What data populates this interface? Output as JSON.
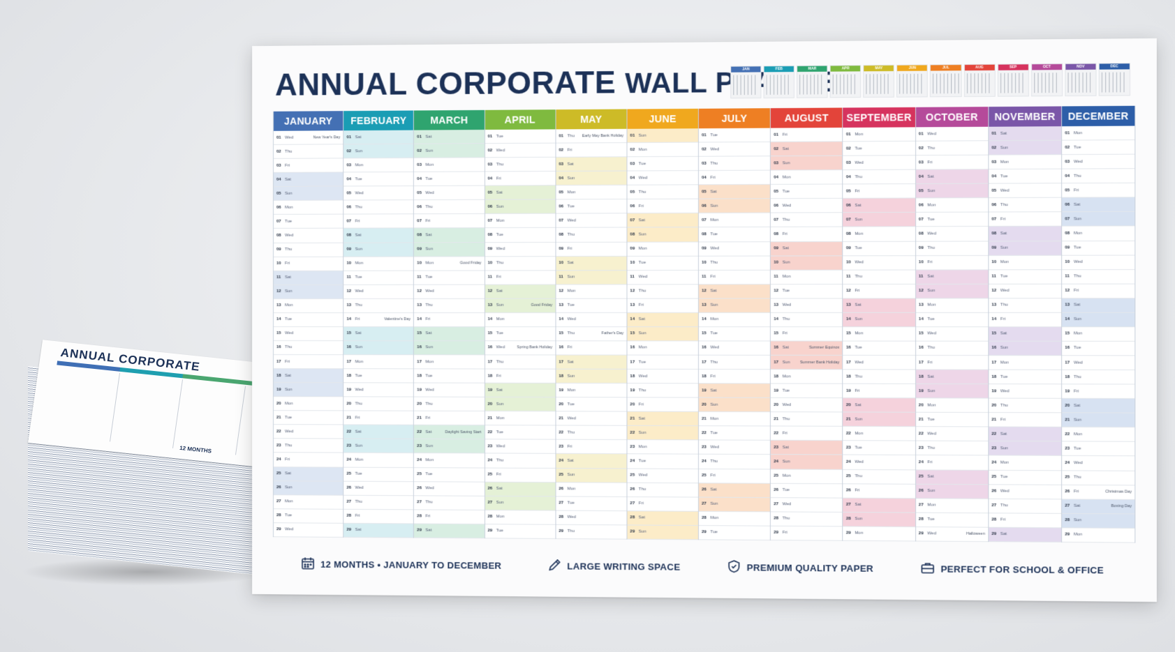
{
  "stack": {
    "title": "ANNUAL CORPORATE",
    "months": [
      "JANUARY",
      "FEBRUARY",
      "MARCH"
    ],
    "footer": "12 MONTHS"
  },
  "poster": {
    "title_part1": "ANNUAL CORPORATE",
    "title_part2": "WALL PLANNER",
    "mini_calendar_months": [
      "JAN",
      "FEB",
      "MAR",
      "APR",
      "MAY",
      "JUN",
      "JUL",
      "AUG",
      "SEP",
      "OCT",
      "NOV",
      "DEC"
    ],
    "months": [
      {
        "name": "JANUARY",
        "color": "#4470b4",
        "tint": "#dde6f3",
        "start_wd": 2,
        "holidays": [
          {
            "day": 1,
            "label": "New Year's Day"
          }
        ]
      },
      {
        "name": "FEBRUARY",
        "color": "#1a9db4",
        "tint": "#d7eef2",
        "start_wd": 5,
        "holidays": [
          {
            "day": 14,
            "label": "Valentine's Day"
          }
        ]
      },
      {
        "name": "MARCH",
        "color": "#2fa46f",
        "tint": "#d8eee2",
        "start_wd": 5,
        "holidays": [
          {
            "day": 10,
            "label": "Good Friday"
          },
          {
            "day": 22,
            "label": "Daylight Saving Start"
          }
        ]
      },
      {
        "name": "APRIL",
        "color": "#7fba3f",
        "tint": "#e5f1d6",
        "start_wd": 1,
        "holidays": [
          {
            "day": 13,
            "label": "Good Friday"
          },
          {
            "day": 16,
            "label": "Spring Bank Holiday"
          }
        ]
      },
      {
        "name": "MAY",
        "color": "#cdbb27",
        "tint": "#f7f1cf",
        "start_wd": 3,
        "holidays": [
          {
            "day": 1,
            "label": "Early May Bank Holiday"
          },
          {
            "day": 15,
            "label": "Father's Day"
          }
        ]
      },
      {
        "name": "JUNE",
        "color": "#f0a81e",
        "tint": "#fcecc8",
        "start_wd": 6,
        "holidays": []
      },
      {
        "name": "JULY",
        "color": "#ee7f23",
        "tint": "#fbe0c9",
        "start_wd": 1,
        "holidays": []
      },
      {
        "name": "AUGUST",
        "color": "#e3443a",
        "tint": "#f8d3cd",
        "start_wd": 4,
        "holidays": [
          {
            "day": 16,
            "label": "Summer Equinox"
          },
          {
            "day": 17,
            "label": "Summer Bank Holiday"
          }
        ]
      },
      {
        "name": "SEPTEMBER",
        "color": "#d6335e",
        "tint": "#f5d2dc",
        "start_wd": 0,
        "holidays": []
      },
      {
        "name": "OCTOBER",
        "color": "#b54a9a",
        "tint": "#eed6e8",
        "start_wd": 2,
        "holidays": [
          {
            "day": 29,
            "label": "Halloween"
          }
        ]
      },
      {
        "name": "NOVEMBER",
        "color": "#7a56a8",
        "tint": "#e4dbef",
        "start_wd": 5,
        "holidays": []
      },
      {
        "name": "DECEMBER",
        "color": "#2d5ea8",
        "tint": "#d7e2f2",
        "start_wd": 0,
        "holidays": [
          {
            "day": 26,
            "label": "Christmas Day"
          },
          {
            "day": 27,
            "label": "Boxing Day"
          }
        ]
      }
    ],
    "weekdays": [
      "Mon",
      "Tue",
      "Wed",
      "Thu",
      "Fri",
      "Sat",
      "Sun"
    ],
    "features": [
      {
        "icon": "calendar-icon",
        "label": "12 MONTHS  •  JANUARY TO DECEMBER"
      },
      {
        "icon": "pencil-icon",
        "label": "LARGE WRITING SPACE"
      },
      {
        "icon": "shield-icon",
        "label": "PREMIUM QUALITY PAPER"
      },
      {
        "icon": "briefcase-icon",
        "label": "PERFECT FOR SCHOOL & OFFICE"
      }
    ]
  }
}
